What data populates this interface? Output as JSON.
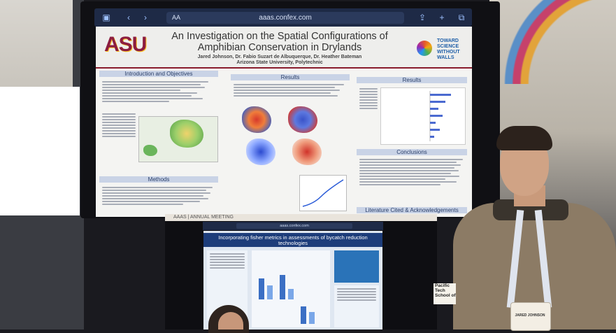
{
  "browser_top": {
    "url": "aaas.confex.com",
    "text_size_label": "AA"
  },
  "poster_main": {
    "logo": "ASU",
    "title": "An Investigation on the Spatial Configurations of Amphibian Conservation in Drylands",
    "authors": "Jared Johnson, Dr. Fabio Suzart de Albuquerque, Dr. Heather Bateman",
    "affiliation": "Arizona State University, Polytechnic",
    "partner_logo_text": "TOWARD SCIENCE WITHOUT WALLS",
    "sections": {
      "intro": "Introduction and Objectives",
      "results_center": "Results",
      "results_right": "Results",
      "methods": "Methods",
      "conclusions": "Conclusions",
      "literature": "Literature Cited & Acknowledgements"
    }
  },
  "browser_bottom": {
    "banner": "AAAS | ANNUAL MEETING",
    "url": "aaas.confex.com"
  },
  "poster_secondary": {
    "title": "Incorporating fisher metrics in assessments of bycatch reduction technologies"
  },
  "badge": {
    "name": "JARED JOHNSON"
  },
  "booth_sign": "Pacific Tech School of"
}
